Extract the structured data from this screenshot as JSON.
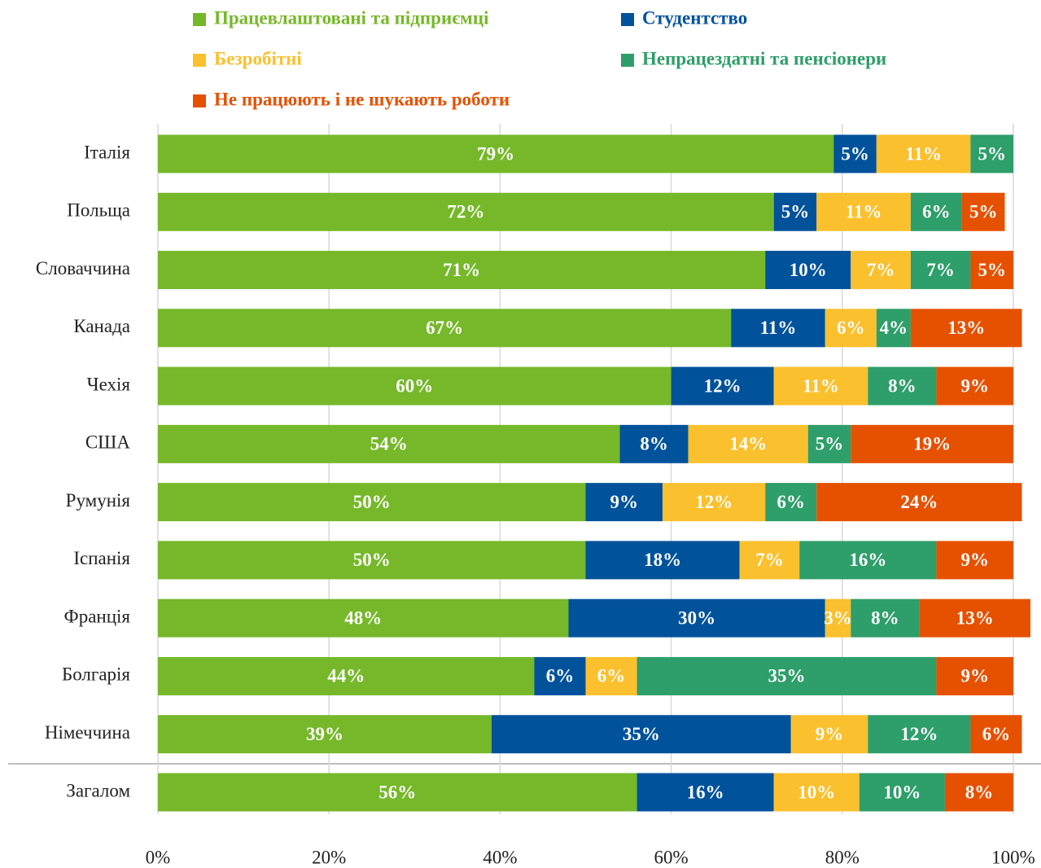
{
  "chart_data": {
    "type": "bar",
    "orientation": "horizontal",
    "stacked": true,
    "grid": true,
    "categories": [
      "Італія",
      "Польща",
      "Словаччина",
      "Канада",
      "Чехія",
      "США",
      "Румунія",
      "Іспанія",
      "Франція",
      "Болгарія",
      "Німеччина",
      "Загалом"
    ],
    "series": [
      {
        "name": "Працевлаштовані та підприємці",
        "color": "#76b82a",
        "values": [
          79,
          72,
          71,
          67,
          60,
          54,
          50,
          50,
          48,
          44,
          39,
          56
        ],
        "value_labels": [
          "79%",
          "72%",
          "71%",
          "67%",
          "60%",
          "54%",
          "50%",
          "50%",
          "48%",
          "44%",
          "39%",
          "56%"
        ]
      },
      {
        "name": "Студентство",
        "color": "#00529b",
        "values": [
          5,
          5,
          10,
          11,
          12,
          8,
          9,
          18,
          30,
          6,
          35,
          16
        ],
        "value_labels": [
          "5%",
          "5%",
          "10%",
          "11%",
          "12%",
          "8%",
          "9%",
          "18%",
          "30%",
          "6%",
          "35%",
          "16%"
        ]
      },
      {
        "name": "Безробітні",
        "color": "#fbc02d",
        "values": [
          11,
          11,
          7,
          6,
          11,
          14,
          12,
          7,
          3,
          6,
          9,
          10
        ],
        "value_labels": [
          "11%",
          "11%",
          "7%",
          "6%",
          "11%",
          "14%",
          "12%",
          "7%",
          "3%",
          "6%",
          "9%",
          "10%"
        ]
      },
      {
        "name": "Непрацездатні та пенсіонери",
        "color": "#2e9e6a",
        "values": [
          5,
          6,
          7,
          4,
          8,
          5,
          6,
          16,
          8,
          35,
          12,
          10
        ],
        "value_labels": [
          "5%",
          "6%",
          "7%",
          "4%",
          "8%",
          "5%",
          "6%",
          "16%",
          "8%",
          "35%",
          "12%",
          "10%"
        ]
      },
      {
        "name": "Не працюють і не шукають роботи",
        "color": "#e65100",
        "values": [
          null,
          5,
          5,
          13,
          9,
          19,
          24,
          9,
          13,
          9,
          6,
          8
        ],
        "value_labels": [
          null,
          "5%",
          "5%",
          "13%",
          "9%",
          "19%",
          "24%",
          "9%",
          "13%",
          "9%",
          "6%",
          "8%"
        ]
      }
    ],
    "xlim": [
      0,
      100
    ],
    "xticks": [
      {
        "value": 0,
        "label": "0%"
      },
      {
        "value": 20,
        "label": "20%"
      },
      {
        "value": 40,
        "label": "40%"
      },
      {
        "value": 60,
        "label": "60%"
      },
      {
        "value": 80,
        "label": "80%"
      },
      {
        "value": 100,
        "label": "100%"
      }
    ]
  }
}
